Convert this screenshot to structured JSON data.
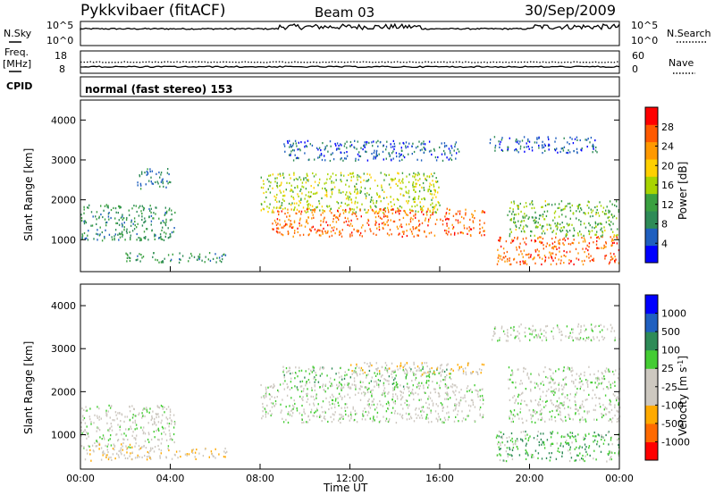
{
  "header": {
    "station": "Pykkvibaer (fitACF)",
    "beam": "Beam 03",
    "date": "30/Sep/2009"
  },
  "noise_panel": {
    "left_label": "N.Sky",
    "right_label": "N.Search",
    "left_ticks": [
      "10^5",
      "10^0"
    ],
    "right_ticks": [
      "10^5",
      "10^0"
    ]
  },
  "freq_panel": {
    "left_label_1": "Freq.",
    "left_label_2": "[MHz]",
    "right_label": "Nave",
    "left_ticks": [
      "18",
      "8"
    ],
    "right_ticks": [
      "60",
      "0"
    ]
  },
  "cpid": {
    "label": "CPID",
    "text": "normal (fast stereo) 153"
  },
  "colors": {
    "power_scale": [
      "#0000ff",
      "#1f5fbf",
      "#2e8b57",
      "#3aa040",
      "#a8d400",
      "#ffd000",
      "#ff9900",
      "#ff5a00",
      "#ff0000"
    ],
    "velocity_scale": [
      "#ff0000",
      "#ff6a00",
      "#ffaa00",
      "#cdc8c0",
      "#cdc8c0",
      "#44cc33",
      "#2e8b57",
      "#2060c0",
      "#0000ff"
    ]
  },
  "chart_data": [
    {
      "type": "heatmap",
      "title": "",
      "xlabel": "",
      "ylabel": "Slant Range [km]",
      "xlim": [
        "00:00",
        "00:00"
      ],
      "ylim": [
        200,
        4500
      ],
      "y_ticks": [
        "4000",
        "3000",
        "2000",
        "1000"
      ],
      "colorbar": {
        "label": "Power [dB]",
        "ticks": [
          "28",
          "24",
          "20",
          "16",
          "12",
          "8",
          "4"
        ],
        "range": [
          0,
          32
        ]
      },
      "regions": [
        {
          "t0": 0.0,
          "t1": 4.2,
          "r0": 1000,
          "r1": 1900,
          "v": 10
        },
        {
          "t0": 2.5,
          "t1": 4.0,
          "r0": 2300,
          "r1": 2800,
          "v": 8
        },
        {
          "t0": 2.0,
          "t1": 6.5,
          "r0": 450,
          "r1": 700,
          "v": 10
        },
        {
          "t0": 8.0,
          "t1": 16.0,
          "r0": 1700,
          "r1": 2700,
          "v": 16
        },
        {
          "t0": 8.5,
          "t1": 18.0,
          "r0": 1100,
          "r1": 1800,
          "v": 26
        },
        {
          "t0": 9.0,
          "t1": 17.0,
          "r0": 3000,
          "r1": 3500,
          "v": 6
        },
        {
          "t0": 18.2,
          "t1": 23.0,
          "r0": 3200,
          "r1": 3600,
          "v": 6
        },
        {
          "t0": 18.5,
          "t1": 24.0,
          "r0": 400,
          "r1": 1100,
          "v": 26
        },
        {
          "t0": 19.0,
          "t1": 24.0,
          "r0": 1100,
          "r1": 2000,
          "v": 14
        }
      ]
    },
    {
      "type": "heatmap",
      "title": "",
      "xlabel": "Time UT",
      "ylabel": "Slant Range [km]",
      "xlim": [
        "00:00",
        "00:00"
      ],
      "ylim": [
        200,
        4500
      ],
      "x_ticks": [
        "00:00",
        "04:00",
        "08:00",
        "12:00",
        "16:00",
        "20:00",
        "00:00"
      ],
      "y_ticks": [
        "4000",
        "3000",
        "2000",
        "1000"
      ],
      "colorbar": {
        "label": "Velocity [m s^-1]",
        "ticks": [
          "1000",
          "500",
          "100",
          "25",
          "-25",
          "-100",
          "-500",
          "-1000"
        ],
        "range": [
          -1200,
          1200
        ]
      },
      "regions": [
        {
          "t0": 0.0,
          "t1": 4.2,
          "r0": 700,
          "r1": 1700,
          "v": 0
        },
        {
          "t0": 0.0,
          "t1": 3.0,
          "r0": 400,
          "r1": 800,
          "v": -300
        },
        {
          "t0": 3.0,
          "t1": 6.5,
          "r0": 450,
          "r1": 700,
          "v": -300
        },
        {
          "t0": 8.0,
          "t1": 18.0,
          "r0": 1300,
          "r1": 2200,
          "v": 0
        },
        {
          "t0": 9.0,
          "t1": 16.5,
          "r0": 2100,
          "r1": 2600,
          "v": 200
        },
        {
          "t0": 12.0,
          "t1": 18.0,
          "r0": 2400,
          "r1": 2700,
          "v": -300
        },
        {
          "t0": 18.3,
          "t1": 24.0,
          "r0": 3200,
          "r1": 3600,
          "v": 0
        },
        {
          "t0": 19.0,
          "t1": 24.0,
          "r0": 1300,
          "r1": 2600,
          "v": 0
        },
        {
          "t0": 18.5,
          "t1": 24.0,
          "r0": 400,
          "r1": 1100,
          "v": 300
        }
      ]
    }
  ]
}
